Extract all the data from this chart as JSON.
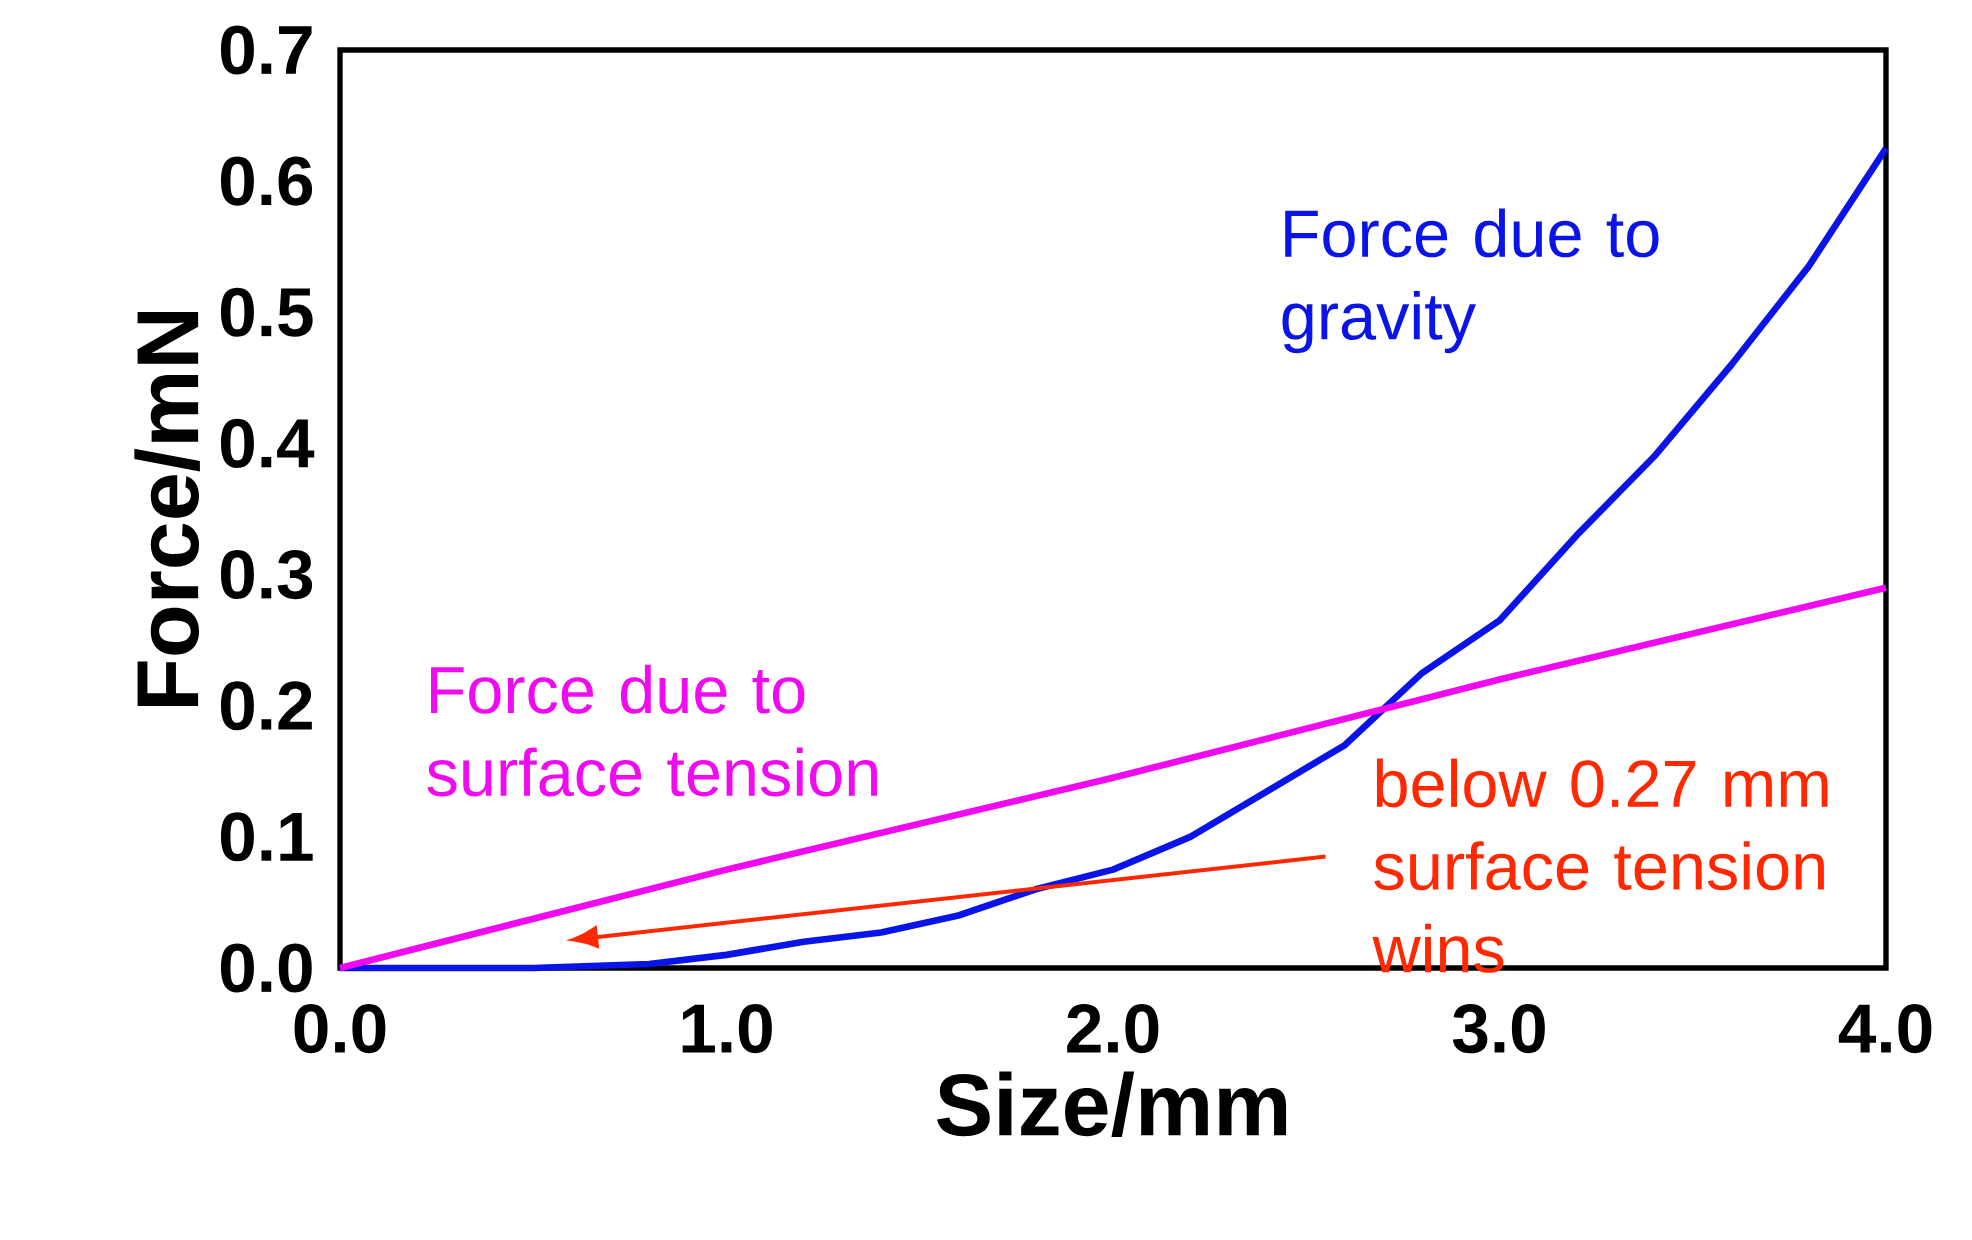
{
  "chart_data": {
    "type": "line",
    "xlabel": "Size/mm",
    "ylabel": "Force/mN",
    "xlim": [
      0,
      4
    ],
    "ylim": [
      0,
      0.7
    ],
    "xticks": [
      {
        "value": 0,
        "label": "0.0"
      },
      {
        "value": 1,
        "label": "1.0"
      },
      {
        "value": 2,
        "label": "2.0"
      },
      {
        "value": 3,
        "label": "3.0"
      },
      {
        "value": 4,
        "label": "4.0"
      }
    ],
    "yticks": [
      {
        "value": 0,
        "label": "0.0"
      },
      {
        "value": 0.1,
        "label": "0.1"
      },
      {
        "value": 0.2,
        "label": "0.2"
      },
      {
        "value": 0.3,
        "label": "0.3"
      },
      {
        "value": 0.4,
        "label": "0.4"
      },
      {
        "value": 0.5,
        "label": "0.5"
      },
      {
        "value": 0.6,
        "label": "0.6"
      },
      {
        "value": 0.7,
        "label": "0.7"
      }
    ],
    "grid": false,
    "legend": false,
    "marker": "none",
    "line_style": "solid",
    "series": [
      {
        "name": "Force due to gravity",
        "color": "#0a14e6",
        "x": [
          0,
          0.5,
          0.8,
          1.0,
          1.2,
          1.4,
          1.6,
          1.8,
          2.0,
          2.2,
          2.4,
          2.6,
          2.8,
          3.0,
          3.2,
          3.4,
          3.6,
          3.8,
          4.0
        ],
        "values": [
          0,
          0,
          0.003,
          0.01,
          0.02,
          0.027,
          0.04,
          0.06,
          0.075,
          0.1,
          0.135,
          0.17,
          0.225,
          0.265,
          0.33,
          0.39,
          0.46,
          0.535,
          0.625
        ]
      },
      {
        "name": "Force due to surface tension",
        "color": "#f00af0",
        "x": [
          0,
          1,
          2,
          3,
          4
        ],
        "values": [
          0,
          0.075,
          0.145,
          0.22,
          0.29
        ]
      }
    ],
    "annotations": [
      "below 0.27 mm surface tension wins"
    ]
  }
}
